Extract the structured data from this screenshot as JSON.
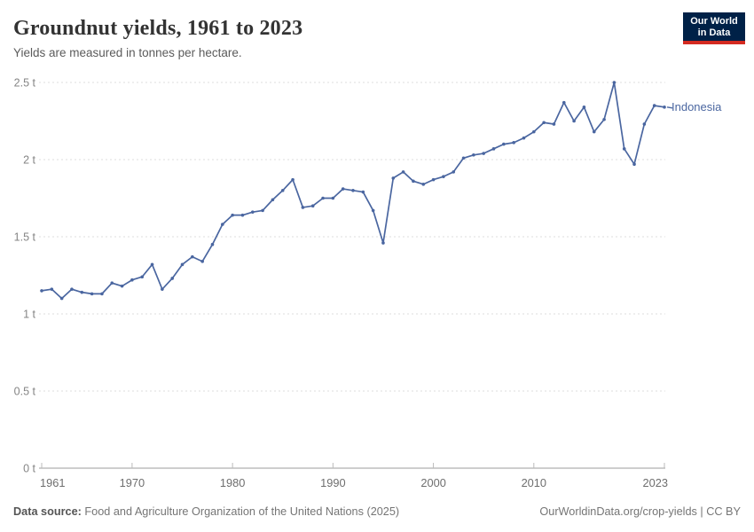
{
  "header": {
    "title": "Groundnut yields, 1961 to 2023",
    "subtitle": "Yields are measured in tonnes per hectare.",
    "logo": {
      "line1": "Our World",
      "line2": "in Data",
      "bg_color": "#002147",
      "accent_color": "#d42b21"
    }
  },
  "chart_data": {
    "type": "line",
    "title": "Groundnut yields, 1961 to 2023",
    "ylabel": "tonnes per hectare",
    "xlabel": "",
    "grid": "horizontal-dashed",
    "legend_position": "end-of-line-label",
    "ylim": [
      0,
      2.5
    ],
    "xlim": [
      1961,
      2023
    ],
    "yticks": [
      0,
      0.5,
      1,
      1.5,
      2,
      2.5
    ],
    "ytick_labels": [
      "0 t",
      "0.5 t",
      "1 t",
      "1.5 t",
      "2 t",
      "2.5 t"
    ],
    "xticks": [
      1961,
      1970,
      1980,
      1990,
      2000,
      2010,
      2023
    ],
    "x": [
      1961,
      1962,
      1963,
      1964,
      1965,
      1966,
      1967,
      1968,
      1969,
      1970,
      1971,
      1972,
      1973,
      1974,
      1975,
      1976,
      1977,
      1978,
      1979,
      1980,
      1981,
      1982,
      1983,
      1984,
      1985,
      1986,
      1987,
      1988,
      1989,
      1990,
      1991,
      1992,
      1993,
      1994,
      1995,
      1996,
      1997,
      1998,
      1999,
      2000,
      2001,
      2002,
      2003,
      2004,
      2005,
      2006,
      2007,
      2008,
      2009,
      2010,
      2011,
      2012,
      2013,
      2014,
      2015,
      2016,
      2017,
      2018,
      2019,
      2020,
      2021,
      2022,
      2023
    ],
    "series": [
      {
        "name": "Indonesia",
        "color": "#4a66a0",
        "values": [
          1.15,
          1.16,
          1.1,
          1.16,
          1.14,
          1.13,
          1.13,
          1.2,
          1.18,
          1.22,
          1.24,
          1.32,
          1.16,
          1.23,
          1.32,
          1.37,
          1.34,
          1.45,
          1.58,
          1.64,
          1.64,
          1.66,
          1.67,
          1.74,
          1.8,
          1.87,
          1.69,
          1.7,
          1.75,
          1.75,
          1.81,
          1.8,
          1.79,
          1.67,
          1.46,
          1.88,
          1.92,
          1.86,
          1.84,
          1.87,
          1.89,
          1.92,
          2.01,
          2.03,
          2.04,
          2.07,
          2.1,
          2.11,
          2.14,
          2.18,
          2.24,
          2.23,
          2.37,
          2.25,
          2.34,
          2.18,
          2.26,
          2.5,
          2.07,
          1.97,
          2.23,
          2.35,
          2.34
        ]
      }
    ]
  },
  "footer": {
    "source_label": "Data source:",
    "source_text": "Food and Agriculture Organization of the United Nations (2025)",
    "credit": "OurWorldinData.org/crop-yields | CC BY"
  }
}
